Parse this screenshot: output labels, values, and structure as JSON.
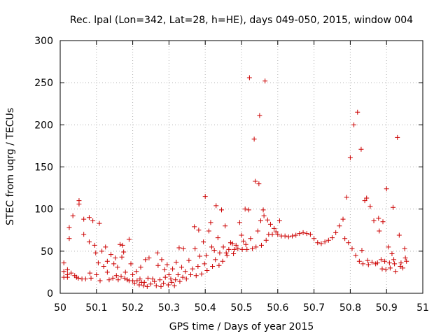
{
  "chart_data": {
    "type": "scatter",
    "title": "Rec. lpal (Lon=342, Lat=28, h=HE), days 049-050, 2015, window 004",
    "xlabel": "GPS time / Days of year 2015",
    "ylabel": "STEC from uqrg / TECUs",
    "xlim": [
      50,
      51
    ],
    "ylim": [
      0,
      300
    ],
    "xticks": [
      "50",
      "50.1",
      "50.2",
      "50.3",
      "50.4",
      "50.5",
      "50.6",
      "50.7",
      "50.8",
      "50.9",
      "51"
    ],
    "yticks": [
      "0",
      "50",
      "100",
      "150",
      "200",
      "250",
      "300"
    ],
    "grid": true,
    "marker": "+",
    "colors": {
      "points": "#cc0000",
      "grid": "#b0b0b0",
      "axes": "#000000"
    },
    "points": [
      [
        50.01,
        36
      ],
      [
        50.01,
        26
      ],
      [
        50.01,
        19
      ],
      [
        50.02,
        28
      ],
      [
        50.02,
        22
      ],
      [
        50.02,
        19
      ],
      [
        50.025,
        78
      ],
      [
        50.025,
        65
      ],
      [
        50.03,
        24
      ],
      [
        50.035,
        92
      ],
      [
        50.04,
        21
      ],
      [
        50.045,
        19
      ],
      [
        50.05,
        18
      ],
      [
        50.052,
        110
      ],
      [
        50.052,
        106
      ],
      [
        50.06,
        17
      ],
      [
        50.065,
        88
      ],
      [
        50.065,
        70
      ],
      [
        50.07,
        17
      ],
      [
        50.08,
        90
      ],
      [
        50.08,
        61
      ],
      [
        50.082,
        24
      ],
      [
        50.085,
        18
      ],
      [
        50.09,
        86
      ],
      [
        50.095,
        57
      ],
      [
        50.098,
        48
      ],
      [
        50.1,
        22
      ],
      [
        50.105,
        36
      ],
      [
        50.108,
        83
      ],
      [
        50.11,
        15
      ],
      [
        50.115,
        50
      ],
      [
        50.12,
        32
      ],
      [
        50.125,
        55
      ],
      [
        50.13,
        38
      ],
      [
        50.13,
        25
      ],
      [
        50.135,
        16
      ],
      [
        50.14,
        46
      ],
      [
        50.145,
        18
      ],
      [
        50.148,
        35
      ],
      [
        50.152,
        42
      ],
      [
        50.155,
        21
      ],
      [
        50.158,
        31
      ],
      [
        50.16,
        16
      ],
      [
        50.165,
        58
      ],
      [
        50.168,
        20
      ],
      [
        50.17,
        43
      ],
      [
        50.172,
        57
      ],
      [
        50.175,
        49
      ],
      [
        50.178,
        18
      ],
      [
        50.18,
        25
      ],
      [
        50.185,
        16
      ],
      [
        50.19,
        15
      ],
      [
        50.19,
        64
      ],
      [
        50.195,
        35
      ],
      [
        50.2,
        15
      ],
      [
        50.2,
        22
      ],
      [
        50.205,
        12
      ],
      [
        50.21,
        26
      ],
      [
        50.212,
        15
      ],
      [
        50.218,
        10
      ],
      [
        50.22,
        17
      ],
      [
        50.222,
        31
      ],
      [
        50.225,
        13
      ],
      [
        50.23,
        9
      ],
      [
        50.232,
        13
      ],
      [
        50.235,
        40
      ],
      [
        50.24,
        8
      ],
      [
        50.242,
        18
      ],
      [
        50.245,
        42
      ],
      [
        50.25,
        11
      ],
      [
        50.255,
        17
      ],
      [
        50.26,
        14
      ],
      [
        50.265,
        9
      ],
      [
        50.268,
        48
      ],
      [
        50.27,
        33
      ],
      [
        50.275,
        16
      ],
      [
        50.278,
        8
      ],
      [
        50.28,
        40
      ],
      [
        50.285,
        12
      ],
      [
        50.288,
        28
      ],
      [
        50.29,
        19
      ],
      [
        50.295,
        34
      ],
      [
        50.298,
        10
      ],
      [
        50.3,
        22
      ],
      [
        50.305,
        17
      ],
      [
        50.308,
        13
      ],
      [
        50.31,
        29
      ],
      [
        50.315,
        9
      ],
      [
        50.318,
        16
      ],
      [
        50.32,
        37
      ],
      [
        50.325,
        22
      ],
      [
        50.328,
        54
      ],
      [
        50.33,
        14
      ],
      [
        50.335,
        31
      ],
      [
        50.338,
        19
      ],
      [
        50.34,
        53
      ],
      [
        50.345,
        26
      ],
      [
        50.348,
        17
      ],
      [
        50.355,
        39
      ],
      [
        50.36,
        22
      ],
      [
        50.365,
        29
      ],
      [
        50.37,
        79
      ],
      [
        50.372,
        53
      ],
      [
        50.375,
        21
      ],
      [
        50.38,
        32
      ],
      [
        50.382,
        75
      ],
      [
        50.385,
        44
      ],
      [
        50.39,
        23
      ],
      [
        50.395,
        61
      ],
      [
        50.398,
        35
      ],
      [
        50.4,
        115
      ],
      [
        50.403,
        45
      ],
      [
        50.405,
        27
      ],
      [
        50.41,
        74
      ],
      [
        50.415,
        84
      ],
      [
        50.418,
        55
      ],
      [
        50.42,
        32
      ],
      [
        50.425,
        51
      ],
      [
        50.428,
        40
      ],
      [
        50.43,
        104
      ],
      [
        50.435,
        66
      ],
      [
        50.438,
        33
      ],
      [
        50.44,
        48
      ],
      [
        50.445,
        99
      ],
      [
        50.448,
        38
      ],
      [
        50.45,
        55
      ],
      [
        50.455,
        80
      ],
      [
        50.458,
        48
      ],
      [
        50.46,
        45
      ],
      [
        50.465,
        52
      ],
      [
        50.47,
        60
      ],
      [
        50.475,
        59
      ],
      [
        50.478,
        47
      ],
      [
        50.48,
        52
      ],
      [
        50.485,
        57
      ],
      [
        50.49,
        53
      ],
      [
        50.495,
        84
      ],
      [
        50.5,
        69
      ],
      [
        50.502,
        52
      ],
      [
        50.505,
        62
      ],
      [
        50.51,
        100
      ],
      [
        50.512,
        58
      ],
      [
        50.515,
        52
      ],
      [
        50.52,
        99
      ],
      [
        50.522,
        256
      ],
      [
        50.525,
        65
      ],
      [
        50.53,
        53
      ],
      [
        50.535,
        183
      ],
      [
        50.538,
        133
      ],
      [
        50.54,
        55
      ],
      [
        50.545,
        74
      ],
      [
        50.548,
        130
      ],
      [
        50.55,
        211
      ],
      [
        50.553,
        86
      ],
      [
        50.555,
        57
      ],
      [
        50.56,
        99
      ],
      [
        50.562,
        92
      ],
      [
        50.565,
        252
      ],
      [
        50.568,
        63
      ],
      [
        50.572,
        87
      ],
      [
        50.575,
        70
      ],
      [
        50.58,
        82
      ],
      [
        50.585,
        70
      ],
      [
        50.59,
        77
      ],
      [
        50.595,
        73
      ],
      [
        50.6,
        70
      ],
      [
        50.605,
        86
      ],
      [
        50.61,
        68
      ],
      [
        50.62,
        68
      ],
      [
        50.63,
        67
      ],
      [
        50.64,
        68
      ],
      [
        50.65,
        69
      ],
      [
        50.66,
        71
      ],
      [
        50.67,
        72
      ],
      [
        50.68,
        71
      ],
      [
        50.69,
        70
      ],
      [
        50.7,
        65
      ],
      [
        50.71,
        60
      ],
      [
        50.72,
        59
      ],
      [
        50.73,
        61
      ],
      [
        50.74,
        63
      ],
      [
        50.75,
        66
      ],
      [
        50.76,
        72
      ],
      [
        50.77,
        80
      ],
      [
        50.78,
        88
      ],
      [
        50.785,
        65
      ],
      [
        50.79,
        114
      ],
      [
        50.795,
        60
      ],
      [
        50.8,
        161
      ],
      [
        50.805,
        53
      ],
      [
        50.81,
        200
      ],
      [
        50.815,
        45
      ],
      [
        50.82,
        215
      ],
      [
        50.825,
        38
      ],
      [
        50.83,
        171
      ],
      [
        50.832,
        51
      ],
      [
        50.835,
        35
      ],
      [
        50.84,
        110
      ],
      [
        50.845,
        113
      ],
      [
        50.848,
        39
      ],
      [
        50.85,
        34
      ],
      [
        50.855,
        103
      ],
      [
        50.86,
        37
      ],
      [
        50.865,
        86
      ],
      [
        50.87,
        35
      ],
      [
        50.875,
        36
      ],
      [
        50.878,
        89
      ],
      [
        50.88,
        74
      ],
      [
        50.885,
        40
      ],
      [
        50.888,
        29
      ],
      [
        50.89,
        85
      ],
      [
        50.895,
        38
      ],
      [
        50.898,
        28
      ],
      [
        50.9,
        124
      ],
      [
        50.905,
        55
      ],
      [
        50.908,
        36
      ],
      [
        50.91,
        30
      ],
      [
        50.915,
        47
      ],
      [
        50.918,
        102
      ],
      [
        50.92,
        40
      ],
      [
        50.922,
        35
      ],
      [
        50.925,
        26
      ],
      [
        50.93,
        185
      ],
      [
        50.935,
        69
      ],
      [
        50.938,
        32
      ],
      [
        50.94,
        36
      ],
      [
        50.945,
        30
      ],
      [
        50.95,
        53
      ],
      [
        50.952,
        42
      ],
      [
        50.955,
        38
      ]
    ]
  }
}
